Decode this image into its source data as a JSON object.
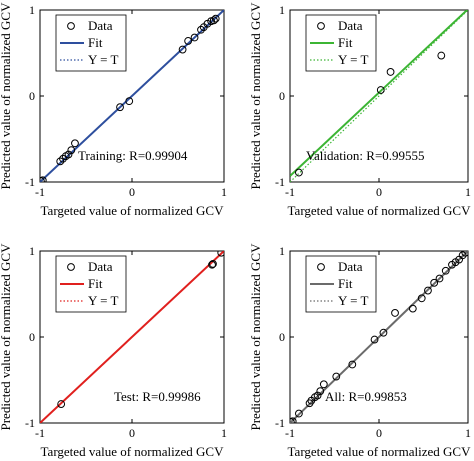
{
  "chart_data": [
    {
      "type": "scatter",
      "annotation": "Training: R=0.99904",
      "xlabel": "Targeted value of normalized GCV",
      "ylabel": "Predicted value of normalized GCV",
      "xlim": [
        -1,
        1
      ],
      "ylim": [
        -1,
        1
      ],
      "xticks": [
        "-1",
        "0",
        "1"
      ],
      "yticks": [
        "-1",
        "0",
        "1"
      ],
      "legend": {
        "placement": "top-left",
        "entries": [
          "Data",
          "Fit",
          "Y = T"
        ]
      },
      "fit_color": "#2e4f9e",
      "fit": {
        "slope": 1.0,
        "intercept": 0.0
      },
      "points": [
        [
          -0.99,
          -0.99
        ],
        [
          -0.97,
          -0.98
        ],
        [
          -0.78,
          -0.76
        ],
        [
          -0.75,
          -0.73
        ],
        [
          -0.72,
          -0.7
        ],
        [
          -0.69,
          -0.68
        ],
        [
          -0.66,
          -0.63
        ],
        [
          -0.62,
          -0.55
        ],
        [
          -0.13,
          -0.13
        ],
        [
          -0.03,
          -0.06
        ],
        [
          0.55,
          0.54
        ],
        [
          0.61,
          0.64
        ],
        [
          0.68,
          0.68
        ],
        [
          0.75,
          0.77
        ],
        [
          0.78,
          0.8
        ],
        [
          0.82,
          0.84
        ],
        [
          0.86,
          0.87
        ],
        [
          0.89,
          0.88
        ],
        [
          0.91,
          0.9
        ]
      ]
    },
    {
      "type": "scatter",
      "annotation": "Validation: R=0.99555",
      "xlabel": "Targeted value of normalized GCV",
      "ylabel": "Predicted value of normalized GCV",
      "xlim": [
        -1,
        1
      ],
      "ylim": [
        -1,
        1
      ],
      "xticks": [
        "-1",
        "0",
        "1"
      ],
      "yticks": [
        "-1",
        "0",
        "1"
      ],
      "legend": {
        "placement": "top-left",
        "entries": [
          "Data",
          "Fit",
          "Y = T"
        ]
      },
      "fit_color": "#3cb534",
      "fit": {
        "slope": 0.97,
        "intercept": 0.04
      },
      "points": [
        [
          -0.9,
          -0.89
        ],
        [
          0.02,
          0.07
        ],
        [
          0.13,
          0.28
        ],
        [
          0.7,
          0.47
        ]
      ]
    },
    {
      "type": "scatter",
      "annotation": "Test: R=0.99986",
      "xlabel": "Targeted value of normalized GCV",
      "ylabel": "Predicted value of normalized GCV",
      "xlim": [
        -1,
        1
      ],
      "ylim": [
        -1,
        1
      ],
      "xticks": [
        "-1",
        "0",
        "1"
      ],
      "yticks": [
        "-1",
        "0",
        "1"
      ],
      "legend": {
        "placement": "top-left",
        "entries": [
          "Data",
          "Fit",
          "Y = T"
        ]
      },
      "fit_color": "#e0201e",
      "fit": {
        "slope": 1.0,
        "intercept": 0.0
      },
      "points": [
        [
          -0.77,
          -0.78
        ],
        [
          0.87,
          0.84
        ],
        [
          0.88,
          0.85
        ],
        [
          0.97,
          0.98
        ]
      ]
    },
    {
      "type": "scatter",
      "annotation": "All: R=0.99853",
      "xlabel": "Targeted value of normalized GCV",
      "ylabel": "Predicted value of normalized GCV",
      "xlim": [
        -1,
        1
      ],
      "ylim": [
        -1,
        1
      ],
      "xticks": [
        "-1",
        "0",
        "1"
      ],
      "yticks": [
        "-1",
        "0",
        "1"
      ],
      "legend": {
        "placement": "top-left",
        "entries": [
          "Data",
          "Fit",
          "Y = T"
        ]
      },
      "fit_color": "#6b6b6b",
      "fit": {
        "slope": 1.0,
        "intercept": 0.0
      },
      "points": [
        [
          -0.99,
          -0.99
        ],
        [
          -0.97,
          -0.98
        ],
        [
          -0.9,
          -0.89
        ],
        [
          -0.78,
          -0.77
        ],
        [
          -0.76,
          -0.74
        ],
        [
          -0.72,
          -0.7
        ],
        [
          -0.69,
          -0.68
        ],
        [
          -0.66,
          -0.63
        ],
        [
          -0.62,
          -0.55
        ],
        [
          -0.48,
          -0.46
        ],
        [
          -0.3,
          -0.32
        ],
        [
          -0.05,
          -0.03
        ],
        [
          0.05,
          0.05
        ],
        [
          0.18,
          0.28
        ],
        [
          0.38,
          0.33
        ],
        [
          0.48,
          0.45
        ],
        [
          0.55,
          0.54
        ],
        [
          0.62,
          0.63
        ],
        [
          0.68,
          0.68
        ],
        [
          0.75,
          0.77
        ],
        [
          0.82,
          0.84
        ],
        [
          0.86,
          0.87
        ],
        [
          0.9,
          0.9
        ],
        [
          0.94,
          0.95
        ],
        [
          0.97,
          0.98
        ]
      ]
    }
  ]
}
